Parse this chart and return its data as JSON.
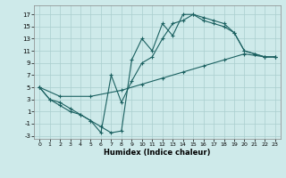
{
  "background_color": "#ceeaea",
  "grid_color": "#aacece",
  "line_color": "#1a6060",
  "xlabel": "Humidex (Indice chaleur)",
  "xlim": [
    -0.5,
    23.5
  ],
  "ylim": [
    -3.5,
    18.5
  ],
  "xticks": [
    0,
    1,
    2,
    3,
    4,
    5,
    6,
    7,
    8,
    9,
    10,
    11,
    12,
    13,
    14,
    15,
    16,
    17,
    18,
    19,
    20,
    21,
    22,
    23
  ],
  "yticks": [
    -3,
    -1,
    1,
    3,
    5,
    7,
    9,
    11,
    13,
    15,
    17
  ],
  "c1x": [
    0,
    1,
    2,
    3,
    4,
    5,
    6,
    7,
    8,
    9,
    10,
    11,
    12,
    13,
    14,
    15,
    16,
    17,
    18,
    19,
    20,
    21,
    22,
    23
  ],
  "c1y": [
    5,
    3,
    2.5,
    1.5,
    0.5,
    -0.5,
    -1.5,
    -2.5,
    -2.2,
    9.5,
    13,
    11,
    15.5,
    13.5,
    17,
    17,
    16.5,
    16,
    15.5,
    14,
    11,
    10.5,
    10,
    10
  ],
  "c2x": [
    0,
    1,
    2,
    3,
    4,
    5,
    6,
    7,
    8,
    9,
    10,
    11,
    12,
    13,
    14,
    15,
    16,
    17,
    18,
    19,
    20,
    21,
    22,
    23
  ],
  "c2y": [
    5,
    3,
    2,
    1,
    0.5,
    -0.5,
    -2.5,
    7.0,
    2.5,
    6,
    9,
    10,
    13,
    15.5,
    16,
    17,
    16,
    15.5,
    15,
    14,
    11,
    10.5,
    10,
    10
  ],
  "c3x": [
    0,
    2,
    5,
    8,
    10,
    12,
    14,
    16,
    18,
    20,
    22,
    23
  ],
  "c3y": [
    5,
    3.5,
    3.5,
    4.5,
    5.5,
    6.5,
    7.5,
    8.5,
    9.5,
    10.5,
    10,
    10
  ]
}
